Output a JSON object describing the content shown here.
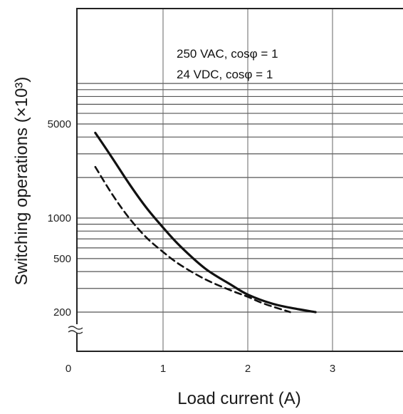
{
  "chart_data": {
    "type": "line",
    "xlabel": "Load current (A)",
    "ylabel": "Switching operations (×10³)",
    "y_scale": "log",
    "xlim": [
      0,
      3.8
    ],
    "x_ticks": [
      {
        "value": 0,
        "label": "0"
      },
      {
        "value": 1,
        "label": "1"
      },
      {
        "value": 2,
        "label": "2"
      },
      {
        "value": 3,
        "label": "3"
      }
    ],
    "y_ticks": [
      {
        "value": 200,
        "label": "200"
      },
      {
        "value": 500,
        "label": "500"
      },
      {
        "value": 1000,
        "label": "1000"
      },
      {
        "value": 5000,
        "label": "5000"
      }
    ],
    "y_gridlines": [
      200,
      300,
      400,
      500,
      600,
      700,
      800,
      900,
      1000,
      2000,
      3000,
      4000,
      5000,
      6000,
      7000,
      8000,
      9000,
      10000
    ],
    "grid": true,
    "axis_break": true,
    "series": [
      {
        "label": "250 VAC, cosφ = 1",
        "style": "solid",
        "color": "#111111",
        "x": [
          0.2,
          0.4,
          0.6,
          0.8,
          1.0,
          1.2,
          1.5,
          1.8,
          2.0,
          2.3,
          2.6,
          2.8
        ],
        "y": [
          4300,
          2800,
          1800,
          1200,
          850,
          620,
          420,
          320,
          270,
          230,
          210,
          200
        ]
      },
      {
        "label": "24 VDC, cosφ = 1",
        "style": "dashed",
        "color": "#111111",
        "x": [
          0.2,
          0.4,
          0.6,
          0.8,
          1.0,
          1.2,
          1.5,
          1.8,
          2.0,
          2.2,
          2.5
        ],
        "y": [
          2400,
          1500,
          1000,
          720,
          560,
          450,
          350,
          290,
          260,
          230,
          200
        ]
      }
    ]
  }
}
